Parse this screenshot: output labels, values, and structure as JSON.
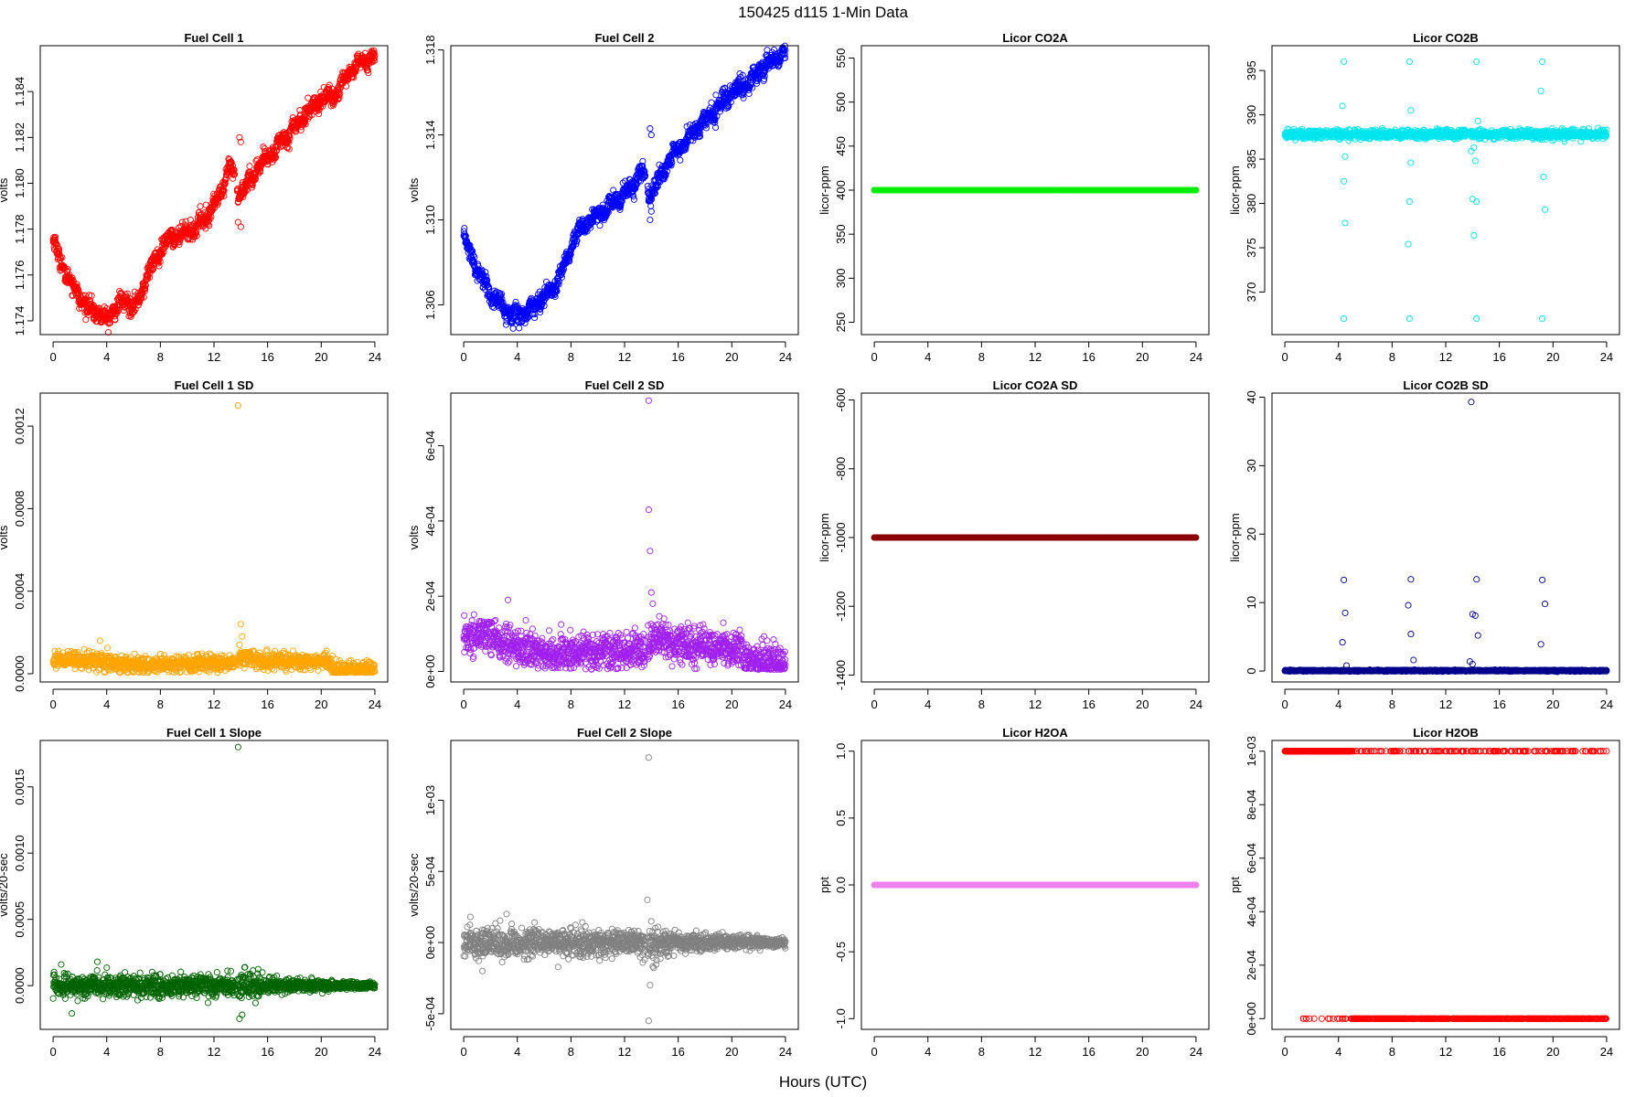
{
  "figure": {
    "title": "150425   d115   1-Min Data",
    "xlabel": "Hours (UTC)"
  },
  "chart_data": [
    {
      "id": "fc1",
      "type": "scatter",
      "title": "Fuel Cell 1",
      "ylabel": "volts",
      "color": "#ff0000",
      "xlim": [
        -0.96,
        24.96
      ],
      "ylim": [
        1.1734,
        1.186
      ],
      "xticks": [
        0,
        4,
        8,
        12,
        16,
        20,
        24
      ],
      "yticks": [
        1.174,
        1.176,
        1.178,
        1.18,
        1.182,
        1.184
      ],
      "ytick_labels": [
        "1.174",
        "1.176",
        "1.178",
        "1.180",
        "1.182",
        "1.184"
      ],
      "series": [
        {
          "generator": "trend",
          "knots": [
            [
              0,
              1.1775
            ],
            [
              0.6,
              1.1765
            ],
            [
              1.5,
              1.1755
            ],
            [
              2.5,
              1.1746
            ],
            [
              3.5,
              1.1743
            ],
            [
              4.0,
              1.174
            ],
            [
              4.5,
              1.1745
            ],
            [
              5.5,
              1.1749
            ],
            [
              6.0,
              1.1746
            ],
            [
              6.5,
              1.175
            ],
            [
              7.0,
              1.176
            ],
            [
              7.8,
              1.1768
            ],
            [
              8.5,
              1.1775
            ],
            [
              9.5,
              1.1778
            ],
            [
              10.5,
              1.178
            ],
            [
              11.5,
              1.1786
            ],
            [
              12.5,
              1.1795
            ],
            [
              13.2,
              1.1808
            ],
            [
              13.9,
              1.1795
            ],
            [
              14.5,
              1.18
            ],
            [
              15.5,
              1.1808
            ],
            [
              17.0,
              1.1818
            ],
            [
              18.5,
              1.1828
            ],
            [
              20.0,
              1.1837
            ],
            [
              21.0,
              1.1838
            ],
            [
              22.0,
              1.1848
            ],
            [
              23.0,
              1.1853
            ],
            [
              24.0,
              1.1855
            ]
          ],
          "noise": 0.00018,
          "wiggle": 0.00025
        }
      ],
      "extra_points": [
        {
          "x": 13.9,
          "y": 1.182
        },
        {
          "x": 14.0,
          "y": 1.1818
        },
        {
          "x": 14.0,
          "y": 1.1781
        },
        {
          "x": 13.8,
          "y": 1.1783
        }
      ]
    },
    {
      "id": "fc2",
      "type": "scatter",
      "title": "Fuel Cell 2",
      "ylabel": "volts",
      "color": "#0000ff",
      "xlim": [
        -0.96,
        24.96
      ],
      "ylim": [
        1.3046,
        1.3182
      ],
      "xticks": [
        0,
        4,
        8,
        12,
        16,
        20,
        24
      ],
      "yticks": [
        1.306,
        1.31,
        1.314,
        1.318
      ],
      "ytick_labels": [
        "1.306",
        "1.310",
        "1.314",
        "1.318"
      ],
      "series": [
        {
          "generator": "trend",
          "knots": [
            [
              0,
              1.3091
            ],
            [
              0.8,
              1.308
            ],
            [
              2.0,
              1.3065
            ],
            [
              3.0,
              1.3058
            ],
            [
              4.0,
              1.3055
            ],
            [
              5.0,
              1.3058
            ],
            [
              6.0,
              1.3064
            ],
            [
              7.0,
              1.307
            ],
            [
              8.0,
              1.3087
            ],
            [
              9.0,
              1.3098
            ],
            [
              10.0,
              1.3102
            ],
            [
              11.0,
              1.3107
            ],
            [
              12.5,
              1.3115
            ],
            [
              13.3,
              1.3123
            ],
            [
              13.9,
              1.3112
            ],
            [
              14.5,
              1.3118
            ],
            [
              15.5,
              1.313
            ],
            [
              17.0,
              1.314
            ],
            [
              18.5,
              1.315
            ],
            [
              20.0,
              1.316
            ],
            [
              21.0,
              1.3163
            ],
            [
              22.0,
              1.317
            ],
            [
              23.0,
              1.3175
            ],
            [
              24.0,
              1.3179
            ]
          ],
          "noise": 0.0002,
          "wiggle": 0.0003
        }
      ],
      "extra_points": [
        {
          "x": 13.9,
          "y": 1.3143
        },
        {
          "x": 14.0,
          "y": 1.314
        },
        {
          "x": 13.9,
          "y": 1.31
        },
        {
          "x": 14.0,
          "y": 1.3104
        }
      ]
    },
    {
      "id": "co2a",
      "type": "scatter",
      "title": "Licor CO2A",
      "ylabel": "licor-ppm",
      "color": "#00ee00",
      "xlim": [
        -0.96,
        24.96
      ],
      "ylim": [
        236,
        564
      ],
      "xticks": [
        0,
        4,
        8,
        12,
        16,
        20,
        24
      ],
      "yticks": [
        250,
        300,
        350,
        400,
        450,
        500,
        550
      ],
      "ytick_labels": [
        "250",
        "300",
        "350",
        "400",
        "450",
        "500",
        "550"
      ],
      "series": [
        {
          "generator": "constant",
          "y": 400,
          "noise": 0
        }
      ]
    },
    {
      "id": "co2b",
      "type": "scatter",
      "title": "Licor CO2B",
      "ylabel": "licor-ppm",
      "color": "#00e5ee",
      "xlim": [
        -0.96,
        24.96
      ],
      "ylim": [
        365.2,
        397.8
      ],
      "xticks": [
        0,
        4,
        8,
        12,
        16,
        20,
        24
      ],
      "yticks": [
        370,
        375,
        380,
        385,
        390,
        395
      ],
      "ytick_labels": [
        "370",
        "375",
        "380",
        "385",
        "390",
        "395"
      ],
      "series": [
        {
          "generator": "constant",
          "y": 387.8,
          "noise": 0.25
        }
      ],
      "extra_points": [
        {
          "x": 4.4,
          "y": 396
        },
        {
          "x": 9.3,
          "y": 396
        },
        {
          "x": 14.3,
          "y": 396
        },
        {
          "x": 19.2,
          "y": 396
        },
        {
          "x": 4.4,
          "y": 367
        },
        {
          "x": 9.3,
          "y": 367
        },
        {
          "x": 14.3,
          "y": 367
        },
        {
          "x": 19.2,
          "y": 367
        },
        {
          "x": 4.3,
          "y": 391
        },
        {
          "x": 9.4,
          "y": 390.5
        },
        {
          "x": 14.4,
          "y": 389.3
        },
        {
          "x": 19.1,
          "y": 392.7
        },
        {
          "x": 4.5,
          "y": 385.3
        },
        {
          "x": 9.4,
          "y": 384.6
        },
        {
          "x": 14.2,
          "y": 384.8
        },
        {
          "x": 4.4,
          "y": 382.5
        },
        {
          "x": 4.5,
          "y": 377.8
        },
        {
          "x": 9.3,
          "y": 380.2
        },
        {
          "x": 9.2,
          "y": 375.4
        },
        {
          "x": 14.0,
          "y": 380.5
        },
        {
          "x": 14.3,
          "y": 380.2
        },
        {
          "x": 14.1,
          "y": 376.4
        },
        {
          "x": 19.3,
          "y": 383
        },
        {
          "x": 19.4,
          "y": 379.3
        },
        {
          "x": 13.9,
          "y": 385.9
        },
        {
          "x": 14.1,
          "y": 386.3
        }
      ]
    },
    {
      "id": "fc1sd",
      "type": "scatter",
      "title": "Fuel Cell 1 SD",
      "ylabel": "volts",
      "color": "#ffa500",
      "xlim": [
        -0.96,
        24.96
      ],
      "ylim": [
        -4e-05,
        0.00136
      ],
      "xticks": [
        0,
        4,
        8,
        12,
        16,
        20,
        24
      ],
      "yticks": [
        0,
        0.0004,
        0.0008,
        0.0012
      ],
      "ytick_labels": [
        "0.0000",
        "0.0004",
        "0.0008",
        "0.0012"
      ],
      "series": [
        {
          "generator": "band",
          "knots": [
            [
              0,
              7e-05
            ],
            [
              4,
              6e-05
            ],
            [
              5,
              4e-05
            ],
            [
              12,
              5e-05
            ],
            [
              13.8,
              5e-05
            ],
            [
              14,
              8e-05
            ],
            [
              16,
              6e-05
            ],
            [
              20.4,
              6e-05
            ],
            [
              21,
              2e-05
            ],
            [
              24,
              2e-05
            ]
          ],
          "noise": 2e-05,
          "floor": 5e-06
        }
      ],
      "extra_points": [
        {
          "x": 13.8,
          "y": 0.0013
        },
        {
          "x": 14.0,
          "y": 0.00024
        },
        {
          "x": 14.1,
          "y": 0.00018
        },
        {
          "x": 3.5,
          "y": 0.00016
        },
        {
          "x": 13.9,
          "y": 0.00014
        }
      ]
    },
    {
      "id": "fc2sd",
      "type": "scatter",
      "title": "Fuel Cell 2 SD",
      "ylabel": "volts",
      "color": "#a020f0",
      "xlim": [
        -0.96,
        24.96
      ],
      "ylim": [
        -2.8e-05,
        0.00074
      ],
      "xticks": [
        0,
        4,
        8,
        12,
        16,
        20,
        24
      ],
      "yticks": [
        0,
        0.0002,
        0.0004,
        0.0006
      ],
      "ytick_labels": [
        "0e+00",
        "2e-04",
        "4e-04",
        "6e-04"
      ],
      "series": [
        {
          "generator": "band",
          "knots": [
            [
              0,
              9e-05
            ],
            [
              2,
              0.0001
            ],
            [
              3,
              8e-05
            ],
            [
              4,
              6e-05
            ],
            [
              6,
              5e-05
            ],
            [
              12,
              5e-05
            ],
            [
              13.6,
              6e-05
            ],
            [
              14,
              9e-05
            ],
            [
              16,
              7e-05
            ],
            [
              20.6,
              6e-05
            ],
            [
              21,
              3e-05
            ],
            [
              24,
              2e-05
            ]
          ],
          "noise": 2.5e-05,
          "floor": 5e-06
        }
      ],
      "extra_points": [
        {
          "x": 13.8,
          "y": 0.00072
        },
        {
          "x": 13.8,
          "y": 0.00043
        },
        {
          "x": 13.9,
          "y": 0.00032
        },
        {
          "x": 14.0,
          "y": 0.00021
        },
        {
          "x": 3.3,
          "y": 0.00019
        },
        {
          "x": 14.1,
          "y": 0.00018
        }
      ]
    },
    {
      "id": "co2asd",
      "type": "scatter",
      "title": "Licor CO2A SD",
      "ylabel": "licor-ppm",
      "color": "#8b0000",
      "xlim": [
        -0.96,
        24.96
      ],
      "ylim": [
        -1420,
        -580
      ],
      "xticks": [
        0,
        4,
        8,
        12,
        16,
        20,
        24
      ],
      "yticks": [
        -1400,
        -1200,
        -1000,
        -800,
        -600
      ],
      "ytick_labels": [
        "-1400",
        "-1200",
        "-1000",
        "-800",
        "-600"
      ],
      "series": [
        {
          "generator": "constant",
          "y": -1000,
          "noise": 0
        }
      ]
    },
    {
      "id": "co2bsd",
      "type": "scatter",
      "title": "Licor CO2B SD",
      "ylabel": "licor-ppm",
      "color": "#00008b",
      "xlim": [
        -0.96,
        24.96
      ],
      "ylim": [
        -1.6,
        40.6
      ],
      "xticks": [
        0,
        4,
        8,
        12,
        16,
        20,
        24
      ],
      "yticks": [
        0,
        10,
        20,
        30,
        40
      ],
      "ytick_labels": [
        "0",
        "10",
        "20",
        "30",
        "40"
      ],
      "series": [
        {
          "generator": "constant",
          "y": 0.05,
          "noise": 0.05
        }
      ],
      "extra_points": [
        {
          "x": 13.9,
          "y": 39.3
        },
        {
          "x": 4.4,
          "y": 13.3
        },
        {
          "x": 9.4,
          "y": 13.4
        },
        {
          "x": 14.3,
          "y": 13.4
        },
        {
          "x": 19.2,
          "y": 13.3
        },
        {
          "x": 4.5,
          "y": 8.5
        },
        {
          "x": 9.2,
          "y": 9.6
        },
        {
          "x": 14.0,
          "y": 8.3
        },
        {
          "x": 14.2,
          "y": 8.1
        },
        {
          "x": 19.4,
          "y": 9.8
        },
        {
          "x": 4.3,
          "y": 4.2
        },
        {
          "x": 9.4,
          "y": 5.4
        },
        {
          "x": 14.4,
          "y": 5.2
        },
        {
          "x": 19.1,
          "y": 3.9
        },
        {
          "x": 4.6,
          "y": 0.8
        },
        {
          "x": 9.6,
          "y": 1.6
        },
        {
          "x": 13.8,
          "y": 1.4
        },
        {
          "x": 14.0,
          "y": 1.0
        }
      ]
    },
    {
      "id": "fc1slope",
      "type": "scatter",
      "title": "Fuel Cell 1 Slope",
      "ylabel": "volts/20-sec",
      "color": "#006400",
      "xlim": [
        -0.96,
        24.96
      ],
      "ylim": [
        -0.00033,
        0.00185
      ],
      "xticks": [
        0,
        4,
        8,
        12,
        16,
        20,
        24
      ],
      "yticks": [
        0,
        0.0005,
        0.001,
        0.0015
      ],
      "ytick_labels": [
        "0.0000",
        "0.0005",
        "0.0010",
        "0.0015"
      ],
      "series": [
        {
          "generator": "band",
          "knots": [
            [
              0,
              0
            ],
            [
              24,
              0
            ]
          ],
          "spread": [
            [
              0,
              8e-05
            ],
            [
              13.5,
              8e-05
            ],
            [
              14,
              0.00012
            ],
            [
              16,
              6e-05
            ],
            [
              20,
              4e-05
            ],
            [
              24,
              2e-05
            ]
          ],
          "noise": 0
        }
      ],
      "extra_points": [
        {
          "x": 13.8,
          "y": 0.0018
        },
        {
          "x": 13.9,
          "y": -0.00025
        },
        {
          "x": 14.1,
          "y": -0.00022
        },
        {
          "x": 1.4,
          "y": -0.00021
        },
        {
          "x": 0.6,
          "y": 0.00016
        },
        {
          "x": 3.3,
          "y": 0.00018
        }
      ]
    },
    {
      "id": "fc2slope",
      "type": "scatter",
      "title": "Fuel Cell 2 Slope",
      "ylabel": "volts/20-sec",
      "color": "#808080",
      "xlim": [
        -0.96,
        24.96
      ],
      "ylim": [
        -0.00061,
        0.00142
      ],
      "xticks": [
        0,
        4,
        8,
        12,
        16,
        20,
        24
      ],
      "yticks": [
        -0.0005,
        0,
        0.0005,
        0.001
      ],
      "ytick_labels": [
        "-5e-04",
        "0e+00",
        "5e-04",
        "1e-03"
      ],
      "series": [
        {
          "generator": "band",
          "knots": [
            [
              0,
              0
            ],
            [
              24,
              0
            ]
          ],
          "spread": [
            [
              0,
              0.0001
            ],
            [
              13.5,
              9e-05
            ],
            [
              14,
              0.00014
            ],
            [
              16,
              7e-05
            ],
            [
              20,
              5e-05
            ],
            [
              24,
              3e-05
            ]
          ],
          "noise": 0
        }
      ],
      "extra_points": [
        {
          "x": 13.8,
          "y": 0.0013
        },
        {
          "x": 13.8,
          "y": -0.00055
        },
        {
          "x": 13.9,
          "y": -0.0003
        },
        {
          "x": 13.7,
          "y": 0.0003
        },
        {
          "x": 0.5,
          "y": 0.00018
        },
        {
          "x": 3.2,
          "y": 0.0002
        },
        {
          "x": 1.4,
          "y": -0.0002
        }
      ]
    },
    {
      "id": "h2oa",
      "type": "scatter",
      "title": "Licor H2OA",
      "ylabel": "ppt",
      "color": "#ee82ee",
      "xlim": [
        -0.96,
        24.96
      ],
      "ylim": [
        -1.08,
        1.08
      ],
      "xticks": [
        0,
        4,
        8,
        12,
        16,
        20,
        24
      ],
      "yticks": [
        -1,
        -0.5,
        0,
        0.5,
        1
      ],
      "ytick_labels": [
        "-1.0",
        "-0.5",
        "0.0",
        "0.5",
        "1.0"
      ],
      "series": [
        {
          "generator": "constant",
          "y": 0,
          "noise": 0
        }
      ]
    },
    {
      "id": "h2ob",
      "type": "scatter",
      "title": "Licor H2OB",
      "ylabel": "ppt",
      "color": "#ff0000",
      "xlim": [
        -0.96,
        24.96
      ],
      "ylim": [
        -4e-05,
        0.00104
      ],
      "xticks": [
        0,
        4,
        8,
        12,
        16,
        20,
        24
      ],
      "yticks": [
        0,
        0.0002,
        0.0004,
        0.0006,
        0.0008,
        0.001
      ],
      "ytick_labels": [
        "0e+00",
        "2e-04",
        "4e-04",
        "6e-04",
        "8e-04",
        "1e-03"
      ],
      "series": [
        {
          "generator": "twolevel",
          "high": 0.001,
          "low": 0,
          "low_start": 1.2,
          "low_dense_start": 5.0
        }
      ]
    }
  ]
}
